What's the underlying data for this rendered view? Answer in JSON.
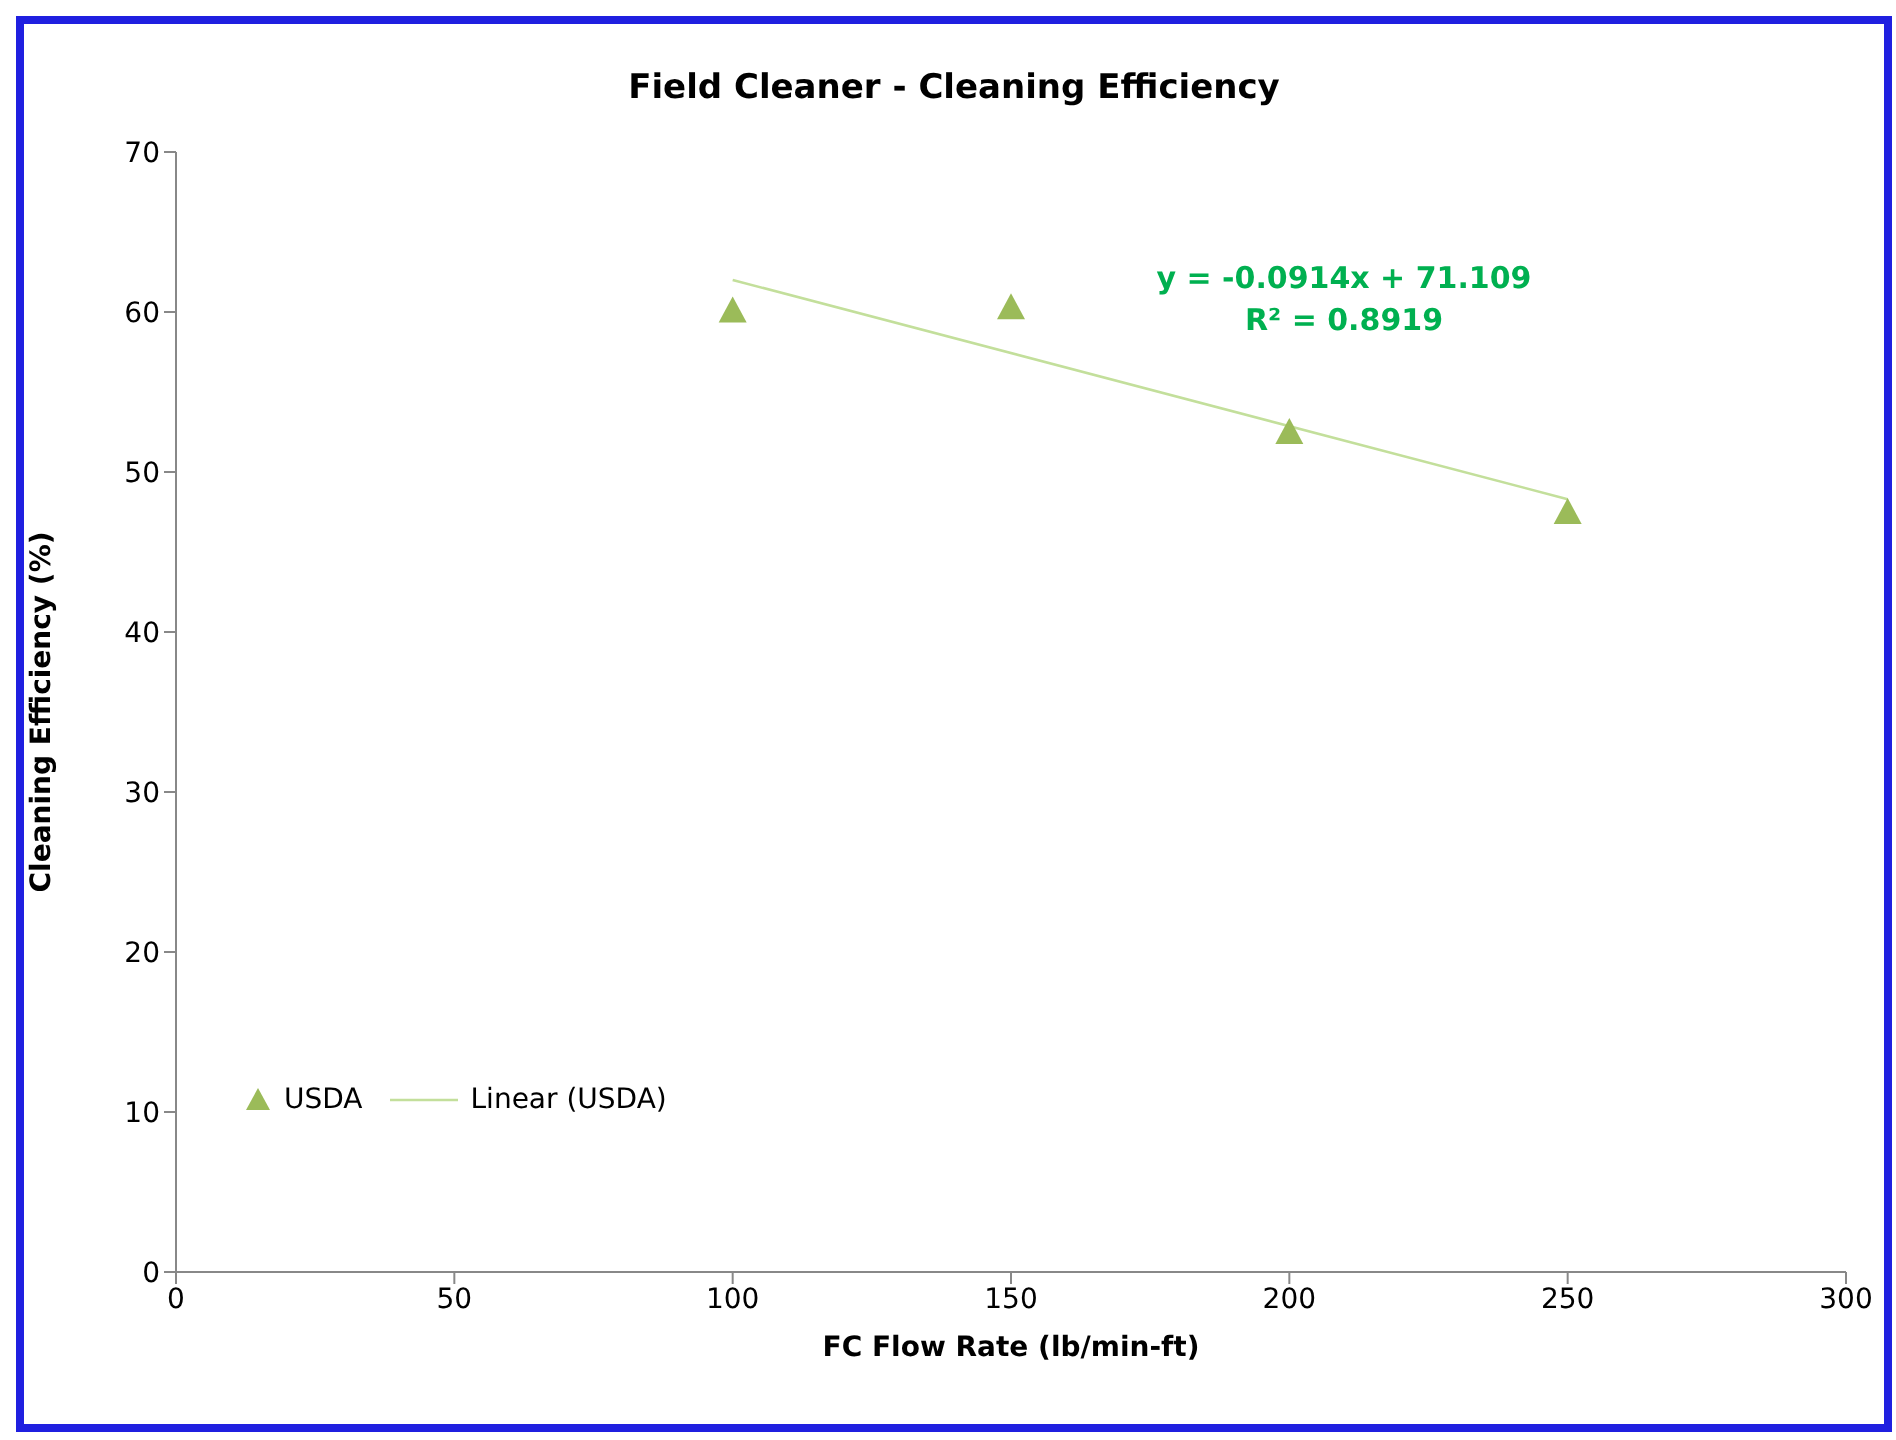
{
  "chart_data": {
    "type": "scatter",
    "title": "Field Cleaner - Cleaning Efficiency",
    "xlabel": "FC Flow Rate (lb/min-ft)",
    "ylabel": "Cleaning Efficiency (%)",
    "series": [
      {
        "name": "USDA",
        "color": "#9bbb59",
        "marker": "triangle",
        "x": [
          100,
          150,
          200,
          250
        ],
        "values": [
          60.1,
          60.3,
          52.5,
          47.5
        ]
      },
      {
        "name": "Linear (USDA)",
        "type": "line",
        "color": "#c3df9b",
        "marker": "none",
        "x": [
          100,
          250
        ],
        "values": [
          62.0,
          48.3
        ]
      }
    ],
    "annotations": [
      "y = -0.0914x + 71.109",
      "R² = 0.8919"
    ],
    "xlim": [
      0,
      300
    ],
    "xticks": [
      0,
      50,
      100,
      150,
      200,
      250,
      300
    ],
    "ylim": [
      0,
      70
    ],
    "yticks": [
      0,
      10,
      20,
      30,
      40,
      50,
      60,
      70
    ],
    "grid": false,
    "legend": "bottom left"
  }
}
